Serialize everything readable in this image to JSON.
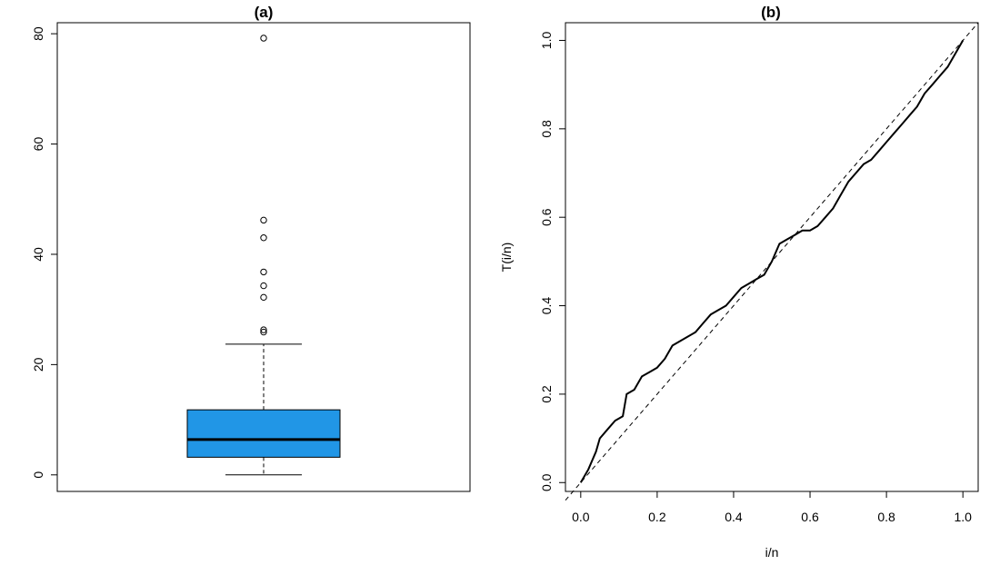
{
  "chart_data": [
    {
      "type": "box",
      "title": "(a)",
      "xlabel": "",
      "ylabel": "",
      "ylim": [
        -3,
        82
      ],
      "yticks": [
        0,
        20,
        40,
        60,
        80
      ],
      "ytick_labels": [
        "0",
        "20",
        "40",
        "60",
        "80"
      ],
      "box_color": "#2196E6",
      "stats": {
        "lower_whisker": 0.0,
        "q1": 3.2,
        "median": 6.4,
        "q3": 11.8,
        "upper_whisker": 23.7
      },
      "outliers": [
        79.2,
        46.2,
        43.0,
        36.8,
        34.3,
        32.2,
        26.3,
        25.9
      ],
      "grid": false,
      "legend": "none"
    },
    {
      "type": "line",
      "title": "(b)",
      "xlabel": "i/n",
      "ylabel": "T(i/n)",
      "xlim": [
        -0.04,
        1.04
      ],
      "ylim": [
        -0.02,
        1.04
      ],
      "xticks": [
        0.0,
        0.2,
        0.4,
        0.6,
        0.8,
        1.0
      ],
      "xtick_labels": [
        "0.0",
        "0.2",
        "0.4",
        "0.6",
        "0.8",
        "1.0"
      ],
      "yticks": [
        0.0,
        0.2,
        0.4,
        0.6,
        0.8,
        1.0
      ],
      "ytick_labels": [
        "0.0",
        "0.2",
        "0.4",
        "0.6",
        "0.8",
        "1.0"
      ],
      "grid": false,
      "legend": "none",
      "series": [
        {
          "style": "solid",
          "x": [
            0.0,
            0.02,
            0.04,
            0.05,
            0.07,
            0.09,
            0.11,
            0.12,
            0.14,
            0.16,
            0.18,
            0.2,
            0.22,
            0.24,
            0.26,
            0.28,
            0.3,
            0.32,
            0.34,
            0.36,
            0.38,
            0.4,
            0.42,
            0.44,
            0.46,
            0.48,
            0.5,
            0.52,
            0.54,
            0.56,
            0.58,
            0.6,
            0.62,
            0.64,
            0.66,
            0.68,
            0.7,
            0.72,
            0.74,
            0.76,
            0.78,
            0.8,
            0.82,
            0.84,
            0.86,
            0.88,
            0.9,
            0.92,
            0.94,
            0.96,
            0.98,
            1.0
          ],
          "y": [
            0.0,
            0.03,
            0.07,
            0.1,
            0.12,
            0.14,
            0.15,
            0.2,
            0.21,
            0.24,
            0.25,
            0.26,
            0.28,
            0.31,
            0.32,
            0.33,
            0.34,
            0.36,
            0.38,
            0.39,
            0.4,
            0.42,
            0.44,
            0.45,
            0.46,
            0.47,
            0.5,
            0.54,
            0.55,
            0.56,
            0.57,
            0.57,
            0.58,
            0.6,
            0.62,
            0.65,
            0.68,
            0.7,
            0.72,
            0.73,
            0.75,
            0.77,
            0.79,
            0.81,
            0.83,
            0.85,
            0.88,
            0.9,
            0.92,
            0.94,
            0.97,
            1.0
          ]
        },
        {
          "style": "dashed",
          "x": [
            -0.04,
            1.04
          ],
          "y": [
            -0.04,
            1.04
          ]
        }
      ]
    }
  ]
}
